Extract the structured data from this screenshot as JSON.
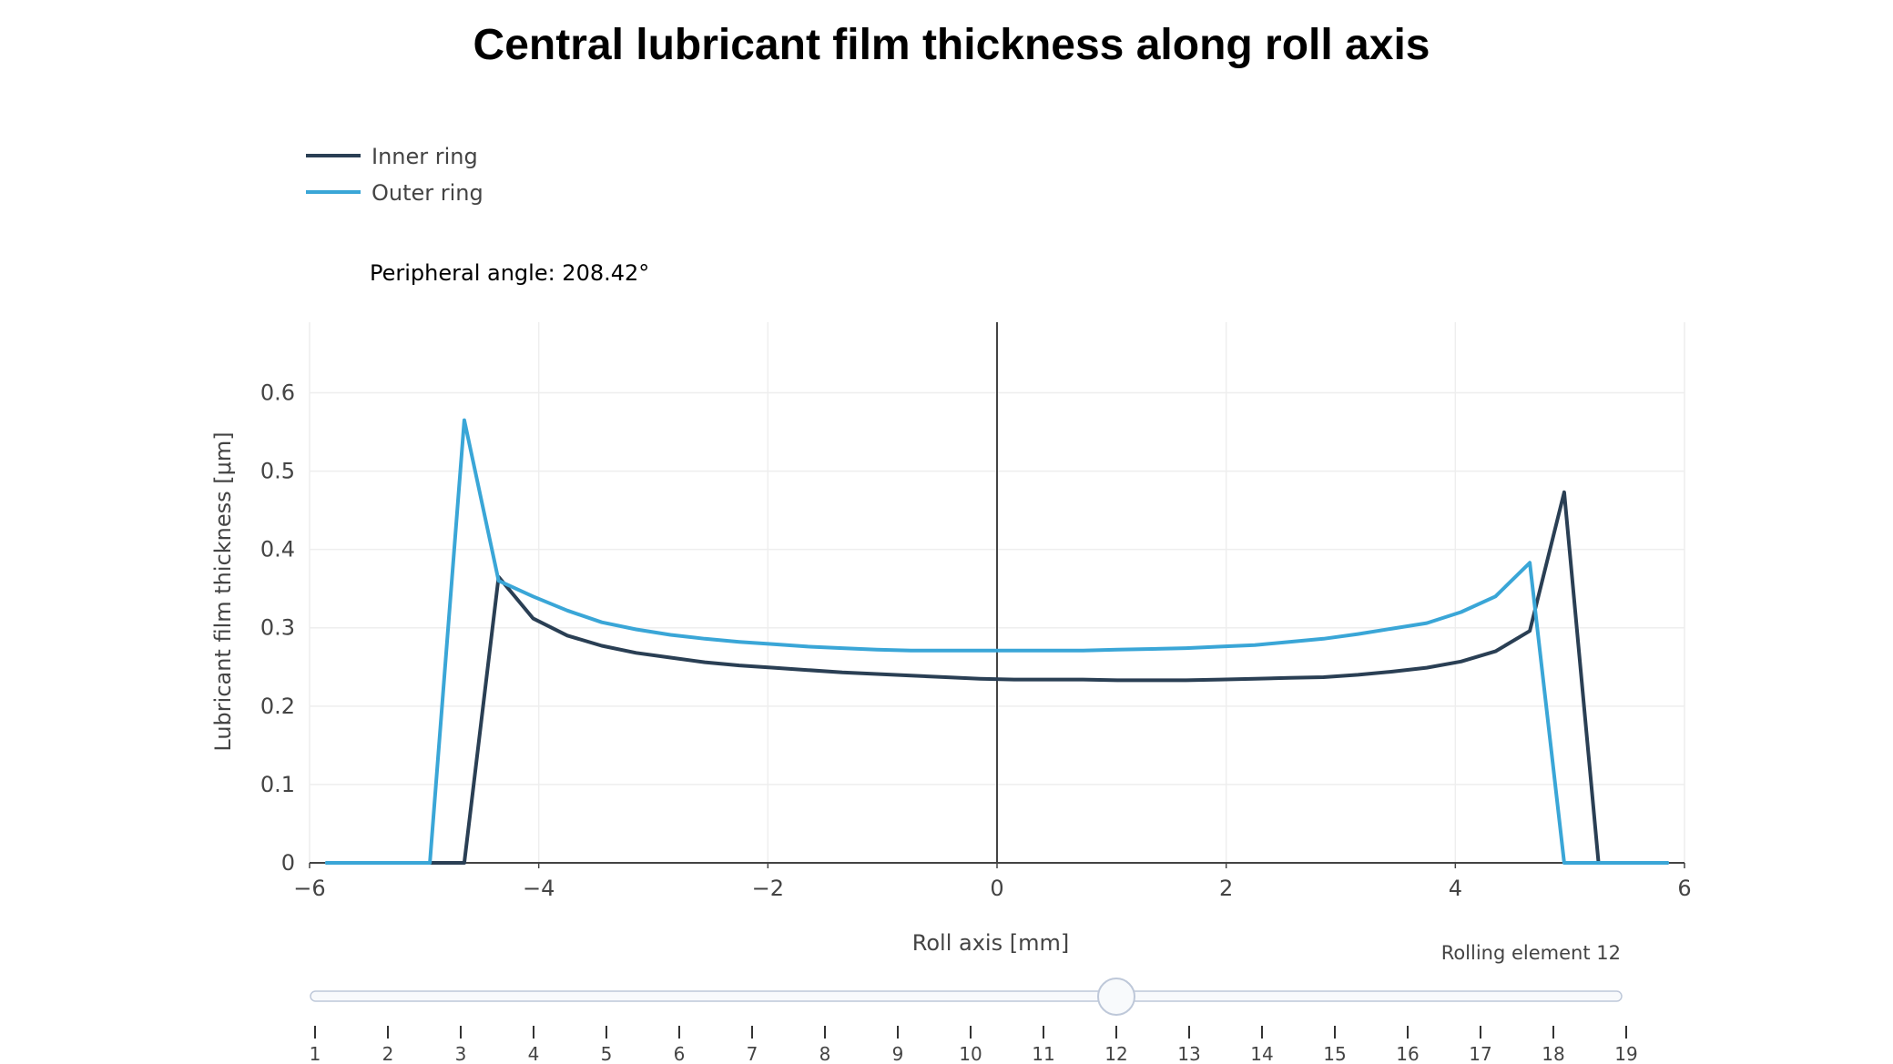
{
  "title": "Central lubricant film thickness along roll axis",
  "annotation": "Peripheral angle: 208.42°",
  "colors": {
    "inner": "#2a3f54",
    "outer": "#3aa6d7",
    "zeroline": "#444444",
    "axis": "#444444"
  },
  "chart_data": {
    "type": "line",
    "xlabel": "Roll axis [mm]",
    "ylabel": "Lubricant film thickness [μm]",
    "xlim": [
      -6,
      6
    ],
    "ylim": [
      0,
      0.69
    ],
    "x_ticks": [
      -6,
      -4,
      -2,
      0,
      2,
      4,
      6
    ],
    "x_tick_labels": [
      "−6",
      "−4",
      "−2",
      "0",
      "2",
      "4",
      "6"
    ],
    "y_ticks": [
      0,
      0.1,
      0.2,
      0.3,
      0.4,
      0.5,
      0.6
    ],
    "y_tick_labels": [
      "0",
      "0.1",
      "0.2",
      "0.3",
      "0.4",
      "0.5",
      "0.6"
    ],
    "grid": true,
    "legend_position": "top-left",
    "series": [
      {
        "name": "Inner ring",
        "color": "#2a3f54",
        "x": [
          -5.85,
          -5.6,
          -5.3,
          -5.0,
          -4.65,
          -4.35,
          -4.05,
          -3.75,
          -3.45,
          -3.15,
          -2.85,
          -2.55,
          -2.25,
          -1.95,
          -1.65,
          -1.35,
          -1.05,
          -0.75,
          -0.45,
          -0.15,
          0.15,
          0.45,
          0.75,
          1.05,
          1.35,
          1.65,
          1.95,
          2.25,
          2.55,
          2.85,
          3.15,
          3.45,
          3.75,
          4.05,
          4.35,
          4.65,
          4.95,
          5.25,
          5.55,
          5.85
        ],
        "y": [
          0,
          0,
          0,
          0,
          0,
          0.365,
          0.312,
          0.29,
          0.277,
          0.268,
          0.262,
          0.256,
          0.252,
          0.249,
          0.246,
          0.243,
          0.241,
          0.239,
          0.237,
          0.235,
          0.234,
          0.234,
          0.234,
          0.233,
          0.233,
          0.233,
          0.234,
          0.235,
          0.236,
          0.237,
          0.24,
          0.244,
          0.249,
          0.257,
          0.27,
          0.296,
          0.473,
          0,
          0,
          0
        ]
      },
      {
        "name": "Outer ring",
        "color": "#3aa6d7",
        "x": [
          -5.85,
          -5.6,
          -5.3,
          -4.95,
          -4.65,
          -4.35,
          -4.05,
          -3.75,
          -3.45,
          -3.15,
          -2.85,
          -2.55,
          -2.25,
          -1.95,
          -1.65,
          -1.35,
          -1.05,
          -0.75,
          -0.45,
          -0.15,
          0.15,
          0.45,
          0.75,
          1.05,
          1.35,
          1.65,
          1.95,
          2.25,
          2.55,
          2.85,
          3.15,
          3.45,
          3.75,
          4.05,
          4.35,
          4.65,
          4.95,
          5.25,
          5.55,
          5.85
        ],
        "y": [
          0,
          0,
          0,
          0,
          0.565,
          0.36,
          0.34,
          0.322,
          0.307,
          0.298,
          0.291,
          0.286,
          0.282,
          0.279,
          0.276,
          0.274,
          0.272,
          0.271,
          0.271,
          0.271,
          0.271,
          0.271,
          0.271,
          0.272,
          0.273,
          0.274,
          0.276,
          0.278,
          0.282,
          0.286,
          0.292,
          0.299,
          0.306,
          0.32,
          0.34,
          0.383,
          0,
          0,
          0,
          0
        ]
      }
    ]
  },
  "slider": {
    "current_label": "Rolling element 12",
    "value": 12,
    "min": 1,
    "max": 19,
    "tick_labels": [
      "1",
      "2",
      "3",
      "4",
      "5",
      "6",
      "7",
      "8",
      "9",
      "10",
      "11",
      "12",
      "13",
      "14",
      "15",
      "16",
      "17",
      "18",
      "19"
    ]
  }
}
